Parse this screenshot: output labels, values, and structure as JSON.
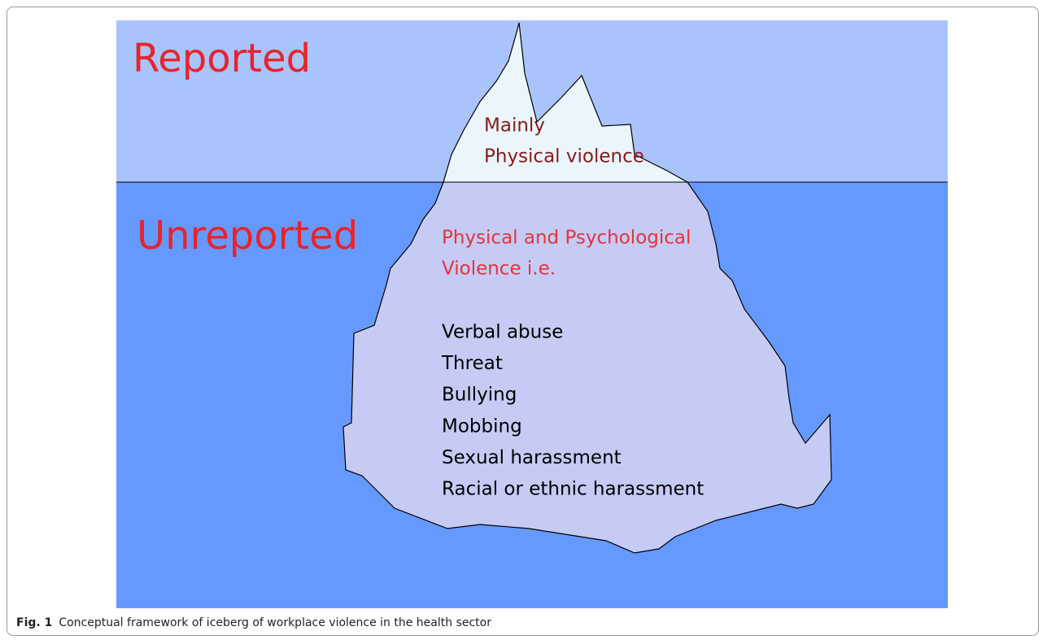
{
  "figure": {
    "above_label": "Reported",
    "below_label": "Unreported",
    "tip_text": [
      "Mainly",
      "Physical violence"
    ],
    "body_heading": [
      "Physical and Psychological",
      "Violence i.e."
    ],
    "items": [
      "Verbal abuse",
      "Threat",
      "Bullying",
      "Mobbing",
      "Sexual harassment",
      "Racial or ethnic harassment"
    ]
  },
  "caption": {
    "label": "Fig. 1",
    "text": "Conceptual framework of iceberg of workplace violence in the health sector"
  }
}
